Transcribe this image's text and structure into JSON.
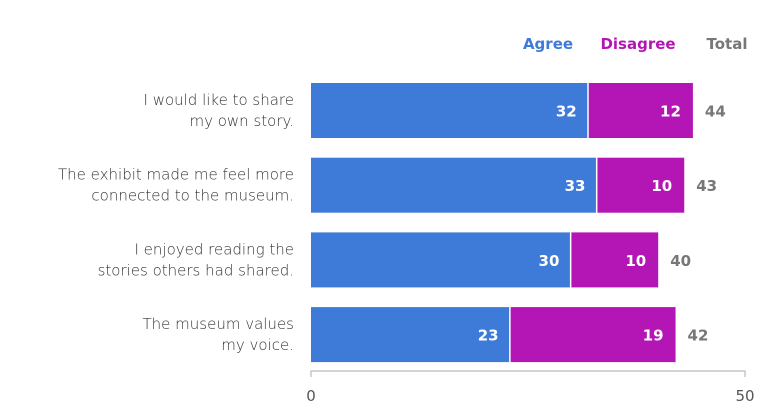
{
  "chart_data": {
    "type": "bar",
    "orientation": "horizontal",
    "stacked": true,
    "categories": [
      [
        "I would like to share",
        "my own story."
      ],
      [
        "The exhibit made me feel more",
        "connected to the museum."
      ],
      [
        "I enjoyed reading the",
        "stories others had shared."
      ],
      [
        "The museum values",
        "my voice."
      ]
    ],
    "series": [
      {
        "name": "Agree",
        "color": "#3e7bd8",
        "values": [
          32,
          33,
          30,
          23
        ]
      },
      {
        "name": "Disagree",
        "color": "#b416b6",
        "values": [
          12,
          10,
          10,
          19
        ]
      }
    ],
    "totals": {
      "name": "Total",
      "color": "#777777",
      "values": [
        44,
        43,
        40,
        42
      ]
    },
    "xlim": [
      0,
      50
    ],
    "xticks": [
      "0",
      "50"
    ],
    "legend": "top-right",
    "grid": false,
    "data_labels": true
  }
}
